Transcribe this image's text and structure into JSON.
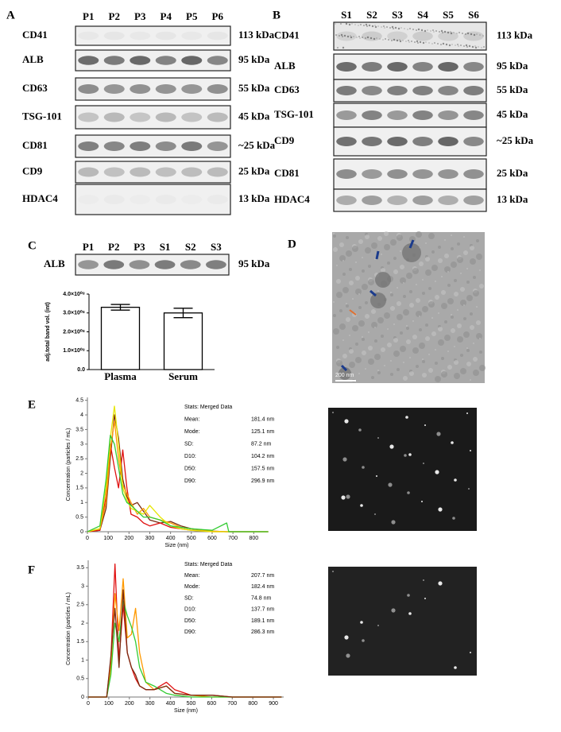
{
  "panels": [
    {
      "label": "A",
      "lanes": [
        "P1",
        "P2",
        "P3",
        "P4",
        "P5",
        "P6"
      ],
      "rows": [
        {
          "protein": "CD41",
          "size": "113 kDa"
        },
        {
          "protein": "ALB",
          "size": "95 kDa"
        },
        {
          "protein": "CD63",
          "size": "55 kDa"
        },
        {
          "protein": "TSG-101",
          "size": "45 kDa"
        },
        {
          "protein": "CD81",
          "size": "~25 kDa"
        },
        {
          "protein": "CD9",
          "size": "25 kDa"
        },
        {
          "protein": "HDAC4",
          "size": "13 kDa"
        }
      ]
    },
    {
      "label": "B",
      "lanes": [
        "S1",
        "S2",
        "S3",
        "S4",
        "S5",
        "S6"
      ],
      "rows": [
        {
          "protein": "CD41",
          "size": "113 kDa"
        },
        {
          "protein": "ALB",
          "size": "95 kDa"
        },
        {
          "protein": "CD63",
          "size": "55 kDa"
        },
        {
          "protein": "TSG-101",
          "size": "45 kDa"
        },
        {
          "protein": "CD9",
          "size": "~25 kDa"
        },
        {
          "protein": "CD81",
          "size": "25 kDa"
        },
        {
          "protein": "HDAC4",
          "size": "13 kDa"
        }
      ]
    },
    {
      "label": "C",
      "lanes": [
        "P1",
        "P2",
        "P3",
        "S1",
        "S2",
        "S3"
      ],
      "rows": [
        {
          "protein": "ALB",
          "size": "95 kDa"
        }
      ]
    },
    {
      "label": "D",
      "scale_bar": "200 nm"
    },
    {
      "label": "E"
    },
    {
      "label": "F"
    }
  ],
  "chart_data": [
    {
      "type": "bar",
      "ylabel": "adj.total band vol. (int)",
      "categories": [
        "Plasma",
        "Serum"
      ],
      "values": [
        330000000,
        300000000
      ],
      "errors": [
        15000000,
        25000000
      ],
      "ylim": [
        0,
        400000000
      ],
      "yticks": [
        {
          "value": 0,
          "label": "0.0"
        },
        {
          "value": 100000000,
          "label": "1.0×10⁰⁸"
        },
        {
          "value": 200000000,
          "label": "2.0×10⁰⁸"
        },
        {
          "value": 300000000,
          "label": "3.0×10⁰⁸"
        },
        {
          "value": 400000000,
          "label": "4.0×10⁰⁸"
        }
      ]
    },
    {
      "type": "line",
      "xlabel": "Size (nm)",
      "ylabel": "Concentration (particles / mL)",
      "x": [
        0,
        60,
        90,
        110,
        130,
        150,
        170,
        190,
        210,
        240,
        270,
        300,
        350,
        400,
        450,
        500,
        600,
        670,
        680,
        870
      ],
      "series": [
        {
          "color": "#7a2a10",
          "values": [
            0,
            0.05,
            0.8,
            2.5,
            4.0,
            3.2,
            1.8,
            1.2,
            0.9,
            1.0,
            0.7,
            0.4,
            0.3,
            0.35,
            0.2,
            0.1,
            0.02,
            0,
            0,
            0
          ]
        },
        {
          "color": "#e01010",
          "values": [
            0,
            0.05,
            1.2,
            3.0,
            2.2,
            1.5,
            2.8,
            1.5,
            0.6,
            0.5,
            0.3,
            0.2,
            0.3,
            0.15,
            0.1,
            0.05,
            0,
            0,
            0,
            0
          ]
        },
        {
          "color": "#ff9900",
          "values": [
            0,
            0.1,
            1.0,
            2.8,
            3.8,
            2.5,
            1.6,
            1.3,
            1.0,
            0.6,
            0.8,
            0.5,
            0.4,
            0.3,
            0.15,
            0.1,
            0.02,
            0,
            0,
            0
          ]
        },
        {
          "color": "#e6e600",
          "values": [
            0,
            0.1,
            1.5,
            3.2,
            4.3,
            3.0,
            1.5,
            1.1,
            0.8,
            0.7,
            0.6,
            0.9,
            0.5,
            0.2,
            0.1,
            0.05,
            0,
            0,
            0,
            0
          ]
        },
        {
          "color": "#33cc33",
          "values": [
            0,
            0.2,
            1.8,
            3.3,
            3.0,
            2.2,
            1.3,
            1.0,
            0.9,
            0.7,
            0.5,
            0.5,
            0.4,
            0.2,
            0.15,
            0.1,
            0.05,
            0.3,
            0,
            0
          ]
        }
      ],
      "xlim": [
        0,
        860
      ],
      "ylim": [
        0,
        4.6
      ],
      "xticks": [
        0,
        100,
        200,
        300,
        400,
        500,
        600,
        700,
        800
      ],
      "yticks": [
        0,
        0.5,
        1,
        1.5,
        2,
        2.5,
        3,
        3.5,
        4,
        4.5
      ],
      "stats": {
        "title": "Stats: Merged Data",
        "rows": [
          [
            "Mean:",
            "181.4 nm"
          ],
          [
            "Mode:",
            "125.1 nm"
          ],
          [
            "SD:",
            "87.2 nm"
          ],
          [
            "D10:",
            "104.2 nm"
          ],
          [
            "D50:",
            "157.5 nm"
          ],
          [
            "D90:",
            "296.9 nm"
          ]
        ]
      }
    },
    {
      "type": "line",
      "xlabel": "Size (nm)",
      "ylabel": "Concentration (particles / mL)",
      "x": [
        0,
        90,
        110,
        130,
        150,
        170,
        190,
        210,
        230,
        250,
        280,
        320,
        380,
        420,
        500,
        600,
        700,
        940
      ],
      "series": [
        {
          "color": "#e01010",
          "values": [
            0,
            0,
            1.0,
            3.6,
            1.0,
            2.5,
            1.2,
            0.8,
            0.5,
            0.3,
            0.2,
            0.2,
            0.4,
            0.2,
            0.05,
            0.05,
            0,
            0
          ]
        },
        {
          "color": "#ff9900",
          "values": [
            0,
            0,
            0.8,
            2.8,
            1.8,
            3.2,
            1.6,
            1.7,
            2.4,
            1.2,
            0.4,
            0.2,
            0.3,
            0.1,
            0.05,
            0,
            0,
            0
          ]
        },
        {
          "color": "#33cc33",
          "values": [
            0,
            0,
            0.6,
            2.0,
            1.5,
            2.6,
            2.2,
            1.9,
            1.5,
            0.8,
            0.4,
            0.3,
            0.1,
            0.05,
            0,
            0,
            0,
            0
          ]
        },
        {
          "color": "#7a2a10",
          "values": [
            0,
            0,
            1.1,
            2.4,
            0.8,
            2.9,
            1.2,
            0.8,
            0.6,
            0.3,
            0.2,
            0.2,
            0.3,
            0.1,
            0.05,
            0.05,
            0,
            0
          ]
        }
      ],
      "xlim": [
        0,
        950
      ],
      "ylim": [
        0,
        3.7
      ],
      "xticks": [
        0,
        100,
        200,
        300,
        400,
        500,
        600,
        700,
        800,
        900
      ],
      "yticks": [
        0,
        0.5,
        1,
        1.5,
        2,
        2.5,
        3,
        3.5
      ],
      "stats": {
        "title": "Stats: Merged Data",
        "rows": [
          [
            "Mean:",
            "207.7 nm"
          ],
          [
            "Mode:",
            "182.4 nm"
          ],
          [
            "SD:",
            "74.8 nm"
          ],
          [
            "D10:",
            "137.7 nm"
          ],
          [
            "D50:",
            "189.1 nm"
          ],
          [
            "D90:",
            "286.3 nm"
          ]
        ]
      }
    }
  ]
}
